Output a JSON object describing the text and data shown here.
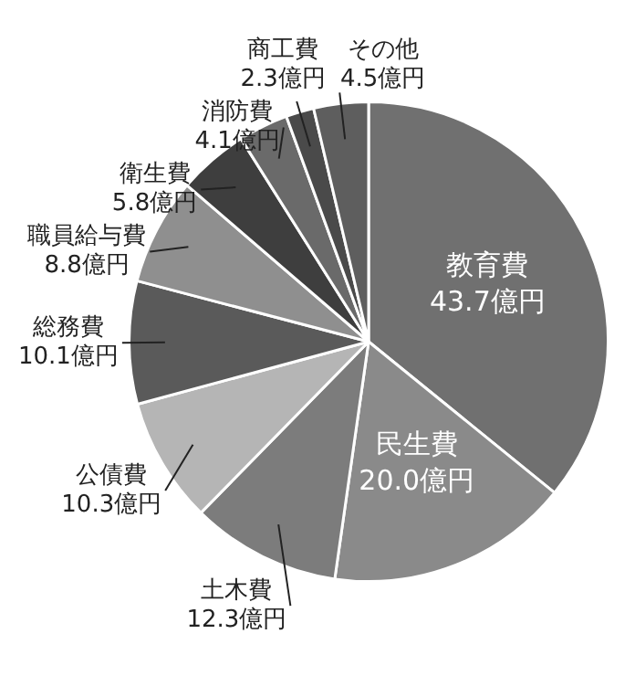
{
  "chart_data": {
    "type": "pie",
    "categories": [
      "教育費",
      "民生費",
      "土木費",
      "公債費",
      "総務費",
      "職員給与費",
      "衛生費",
      "消防費",
      "商工費",
      "その他"
    ],
    "values": [
      43.7,
      20.0,
      12.3,
      10.3,
      10.1,
      8.8,
      5.8,
      4.1,
      2.3,
      4.5
    ],
    "value_labels": [
      "43.7億円",
      "20.0億円",
      "12.3億円",
      "10.3億円",
      "10.1億円",
      "8.8億円",
      "5.8億円",
      "4.1億円",
      "2.3億円",
      "4.5億円"
    ],
    "colors": [
      "#707070",
      "#8a8a8a",
      "#7c7c7c",
      "#b5b5b5",
      "#5a5a5a",
      "#8f8f8f",
      "#3e3e3e",
      "#6a6a6a",
      "#4a4a4a",
      "#5e5e5e"
    ],
    "legend": false
  }
}
